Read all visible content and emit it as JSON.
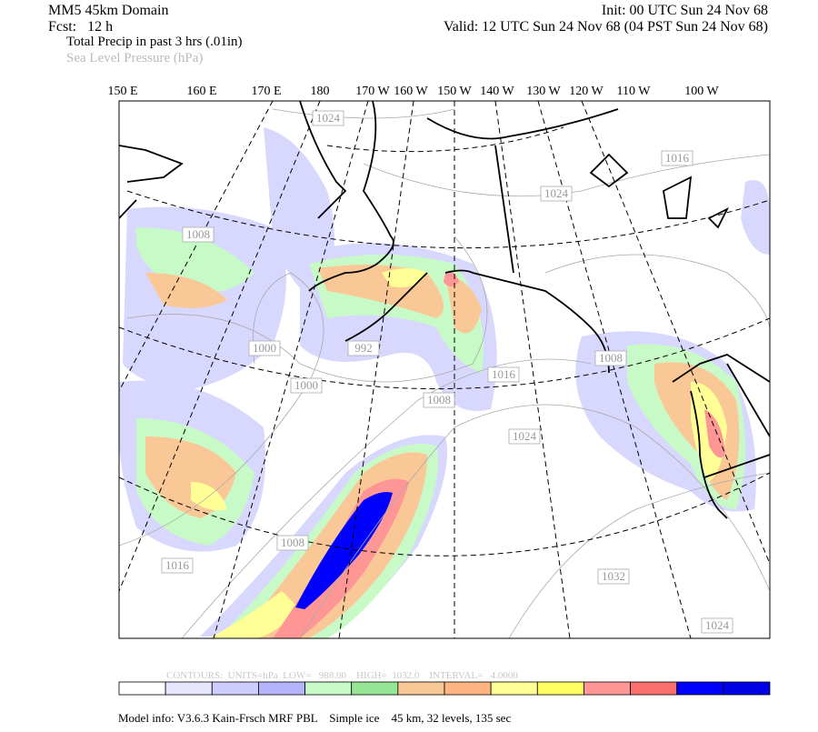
{
  "header": {
    "title": "MM5 45km Domain",
    "forecast": "Fcst:   12 h",
    "field_1": "Total Precip in past 3 hrs (.01in)",
    "field_2": "Sea Level Pressure (hPa)",
    "init": "Init: 00 UTC Sun 24 Nov 68",
    "valid": "Valid: 12 UTC Sun 24 Nov 68 (04 PST Sun 24 Nov 68)"
  },
  "map": {
    "longitude_labels": [
      "150 E",
      "160 E",
      "170 E",
      "180",
      "170 W",
      "160 W",
      "150 W",
      "140 W",
      "130 W",
      "120 W",
      "110 W",
      "100 W"
    ],
    "contour_labels": [
      "1024",
      "1016",
      "1024",
      "1008",
      "1000",
      "1000",
      "992",
      "1016",
      "1008",
      "1008",
      "1024",
      "1008",
      "1016",
      "1032",
      "1024"
    ]
  },
  "contour_info": "CONTOURS:  UNITS=hPa  LOW=   988.00    HIGH=  1032.0    INTERVAL=   4.0000",
  "colorbar": {
    "colors": [
      "#ffffff",
      "#e6e6ff",
      "#cdcdff",
      "#b4b4fa",
      "#c8fac8",
      "#96e696",
      "#fac896",
      "#ffb482",
      "#ffff96",
      "#ffff64",
      "#ff9696",
      "#fa6e6e",
      "#0000ff",
      "#0000e6"
    ]
  },
  "footer": "Model info: V3.6.3 Kain-Frsch MRF PBL    Simple ice    45 km, 32 levels, 135 sec"
}
